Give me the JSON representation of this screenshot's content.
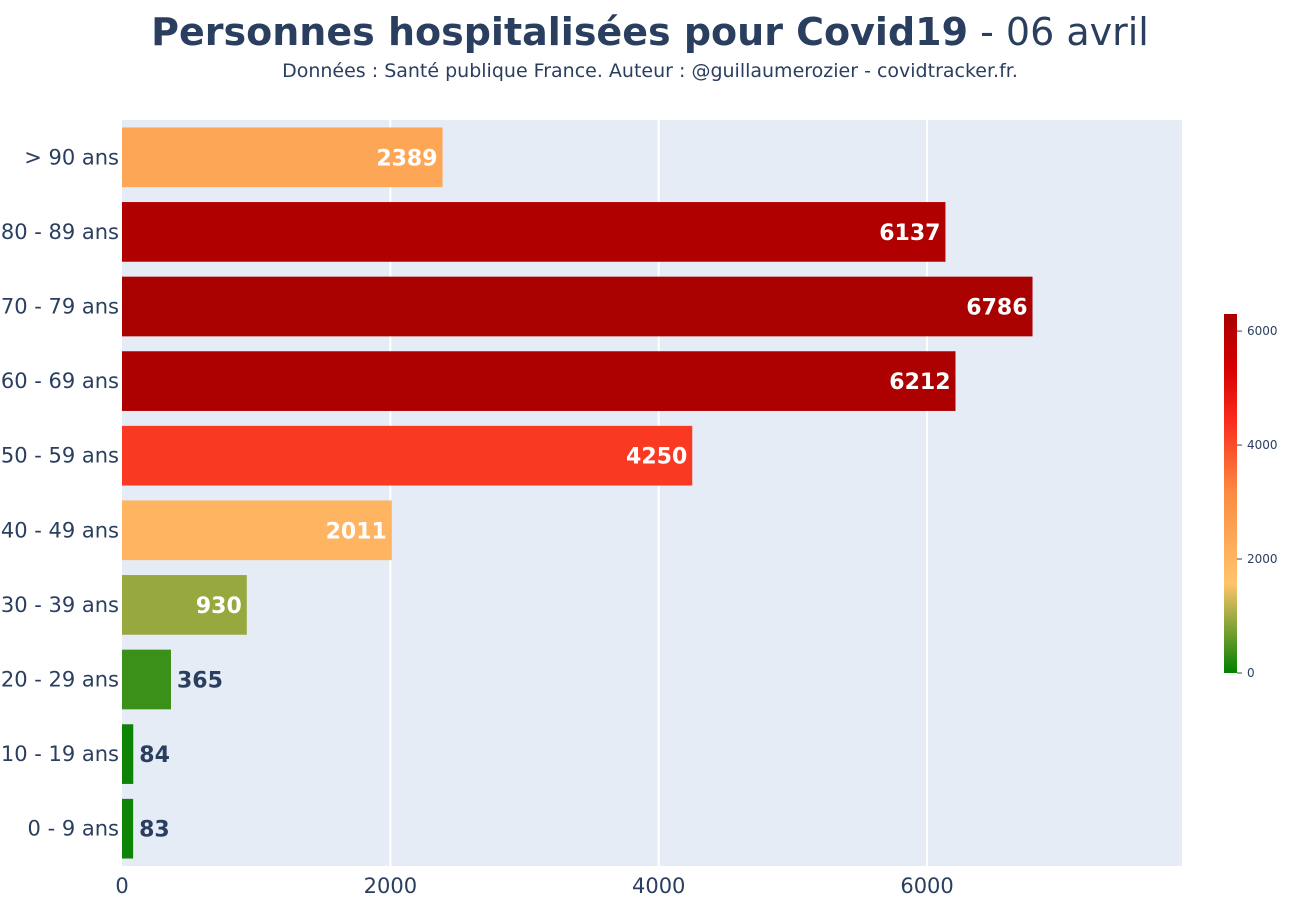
{
  "chart_data": {
    "type": "bar",
    "orientation": "horizontal",
    "title": "Personnes hospitalisées pour Covid19",
    "title_separator": " - ",
    "title_date": "06 avril",
    "subtitle": "Données : Santé publique France. Auteur : @guillaumerozier - covidtracker.fr.",
    "xlabel": "",
    "ylabel": "",
    "categories": [
      "> 90 ans",
      "80 - 89 ans",
      "70 - 79 ans",
      "60 - 69 ans",
      "50 - 59 ans",
      "40 - 49 ans",
      "30 - 39 ans",
      "20 - 29 ans",
      "10 - 19 ans",
      "0 - 9 ans"
    ],
    "values": [
      2389,
      6137,
      6786,
      6212,
      4250,
      2011,
      930,
      365,
      84,
      83
    ],
    "xlim": [
      0,
      7900
    ],
    "x_ticks": [
      0,
      2000,
      4000,
      6000
    ],
    "grid": true,
    "colorbar": {
      "range": [
        0,
        6300
      ],
      "ticks": [
        0,
        2000,
        4000,
        6000
      ]
    }
  },
  "colors": {
    "plot_background": "#e5ecf6",
    "grid": "#ffffff",
    "text": "#2a3f5f",
    "bar_label_inside": "#ffffff",
    "bar_label_outside": "#2a3f5f",
    "colorscale": [
      [
        0.0,
        "#008000"
      ],
      [
        0.25,
        "#ffc46b"
      ],
      [
        0.5,
        "#fb8c42"
      ],
      [
        0.7,
        "#fa2d1e"
      ],
      [
        0.85,
        "#d50000"
      ],
      [
        1.0,
        "#a90000"
      ]
    ]
  }
}
